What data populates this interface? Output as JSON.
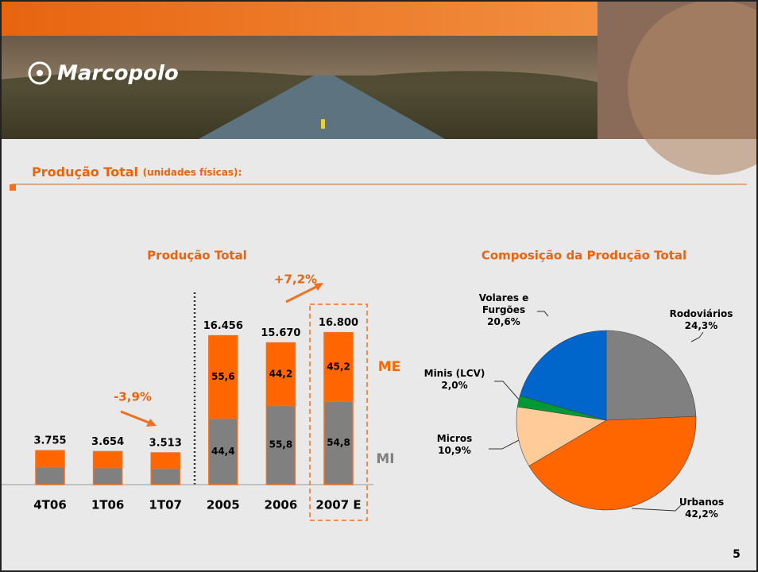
{
  "header": {
    "logo_text": "Marcopolo"
  },
  "section": {
    "title": "Produção Total",
    "subtitle": "(unidades físicas):"
  },
  "chart_data": [
    {
      "type": "stacked_bar",
      "title": "Produção Total",
      "categories": [
        "4T06",
        "1T06",
        "1T07",
        "2005",
        "2006",
        "2007 E"
      ],
      "values": [
        3755,
        3654,
        3513,
        16456,
        15670,
        16800
      ],
      "value_labels": [
        "3.755",
        "3.654",
        "3.513",
        "16.456",
        "15.670",
        "16.800"
      ],
      "series": [
        {
          "name": "ME",
          "color": "#ff6600",
          "values": [
            48,
            49,
            49,
            55.6,
            44.2,
            45.2
          ],
          "value_labels": [
            null,
            null,
            null,
            "55,6",
            "44,2",
            "45,2"
          ]
        },
        {
          "name": "MI",
          "color": "#808080",
          "values": [
            52,
            51,
            51,
            44.4,
            55.8,
            54.8
          ],
          "value_labels": [
            null,
            null,
            null,
            "44,4",
            "55,8",
            "54,8"
          ]
        }
      ],
      "ylim": [
        0,
        18000
      ],
      "annotations": [
        "-3,9%",
        "+7,2%"
      ]
    },
    {
      "type": "pie",
      "title": "Composição da Produção Total",
      "categories": [
        "Rodoviários",
        "Urbanos",
        "Micros",
        "Minis (LCV)",
        "Volares e Furgões"
      ],
      "values": [
        24.3,
        42.2,
        10.9,
        2.0,
        20.6
      ],
      "value_labels": [
        "24,3%",
        "42,2%",
        "10,9%",
        "2,0%",
        "20,6%"
      ],
      "colors": [
        "#808080",
        "#ff6600",
        "#ffcc99",
        "#009933",
        "#0066cc"
      ]
    }
  ],
  "page_number": 5
}
